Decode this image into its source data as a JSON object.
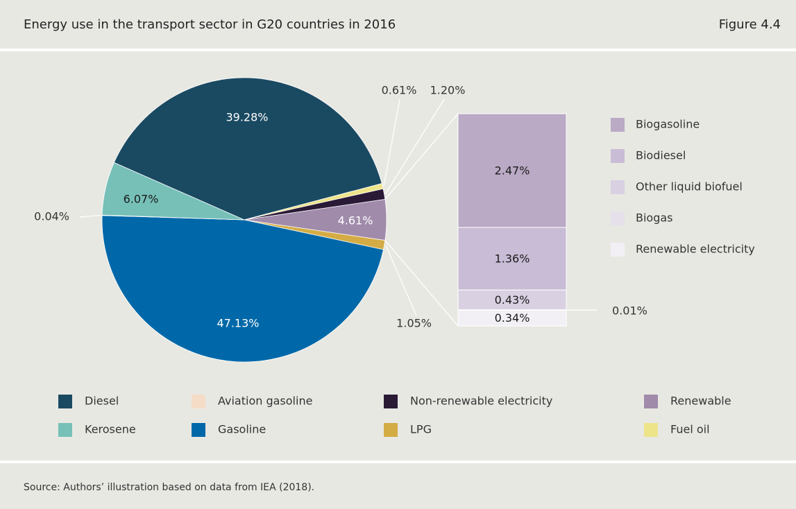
{
  "header": {
    "title": "Energy use in the transport sector in G20 countries in 2016",
    "figure": "Figure 4.4"
  },
  "chart_data": [
    {
      "type": "pie",
      "categories": [
        "Diesel",
        "Aviation gasoline",
        "Non-renewable electricity",
        "Renewable",
        "Kerosene",
        "Gasoline",
        "LPG",
        "Fuel oil"
      ],
      "values": [
        39.28,
        0.04,
        1.2,
        4.61,
        6.07,
        47.13,
        1.05,
        0.61
      ],
      "value_labels": [
        "39.28%",
        "0.04%",
        "1.20%",
        "4.61%",
        "6.07%",
        "47.13%",
        "1.05%",
        "0.61%"
      ],
      "colors": [
        "#1a4a62",
        "#f5dcc6",
        "#2a1a36",
        "#a08bab",
        "#76c0b8",
        "#0068a8",
        "#d4ac45",
        "#ede48a"
      ]
    },
    {
      "type": "stacked-bar",
      "categories": [
        "Biogasoline",
        "Biodiesel",
        "Other liquid biofuel",
        "Biogas",
        "Renewable electricity"
      ],
      "values": [
        2.47,
        1.36,
        0.43,
        0.01,
        0.34
      ],
      "value_labels": [
        "2.47%",
        "1.36%",
        "0.43%",
        "0.01%",
        "0.34%"
      ],
      "colors": [
        "#baaac5",
        "#c9bcd6",
        "#d9d0e2",
        "#e5e0ea",
        "#f2f0f5"
      ]
    }
  ],
  "source": "Source: Authors’ illustration based on data from IEA (2018)."
}
